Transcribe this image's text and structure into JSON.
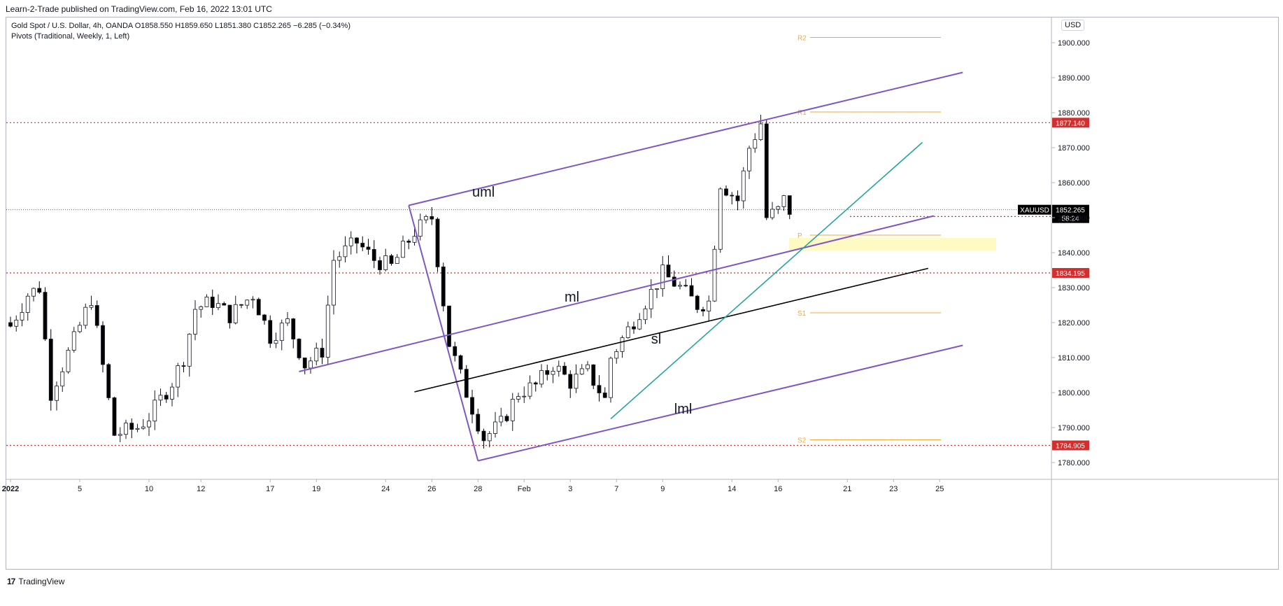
{
  "header": {
    "publisher_line": "Learn-2-Trade published on TradingView.com, Feb 16, 2022 13:01 UTC"
  },
  "legend": {
    "title": "Gold Spot / U.S. Dollar, 4h, OANDA",
    "open": "O1858.550",
    "high": "H1859.650",
    "low": "L1851.380",
    "close": "C1852.265",
    "change": "−6.285 (−0.34%)",
    "indicator": "Pivots (Traditional, Weekly, 1, Left)"
  },
  "currency_badge": "USD",
  "footer": {
    "logo": "17",
    "brand": "TradingView"
  },
  "colors": {
    "bull": "#ffffff",
    "bear": "#000000",
    "pitchfork": "#7e57c2",
    "sliding": "#000000",
    "trend": "#26a69a",
    "pivot": "#f2a93b",
    "level": "#d32f2f",
    "highlight": "#fff59d"
  },
  "chart_data": {
    "type": "candlestick",
    "symbol": "XAUUSD",
    "timeframe": "4h",
    "ylim": [
      1775,
      1905
    ],
    "price_ticks": [
      1780,
      1790,
      1800,
      1810,
      1820,
      1830,
      1840,
      1850,
      1860,
      1870,
      1880,
      1890,
      1900
    ],
    "price_tick_labels": [
      "1780.000",
      "1790.000",
      "1800.000",
      "1810.000",
      "1820.000",
      "1830.000",
      "1840.000",
      "1850.000",
      "1860.000",
      "1870.000",
      "1880.000",
      "1890.000",
      "1900.000"
    ],
    "x_labels": [
      {
        "label": "2022",
        "bar": 0
      },
      {
        "label": "5",
        "bar": 12
      },
      {
        "label": "10",
        "bar": 24
      },
      {
        "label": "12",
        "bar": 33
      },
      {
        "label": "17",
        "bar": 45
      },
      {
        "label": "19",
        "bar": 53
      },
      {
        "label": "24",
        "bar": 65
      },
      {
        "label": "26",
        "bar": 73
      },
      {
        "label": "28",
        "bar": 81
      },
      {
        "label": "Feb",
        "bar": 89
      },
      {
        "label": "3",
        "bar": 97
      },
      {
        "label": "7",
        "bar": 105
      },
      {
        "label": "9",
        "bar": 113
      },
      {
        "label": "14",
        "bar": 125
      },
      {
        "label": "16",
        "bar": 133
      },
      {
        "label": "21",
        "bar": 145
      },
      {
        "label": "23",
        "bar": 153
      },
      {
        "label": "25",
        "bar": 161
      }
    ],
    "ohlc_anchor_points": [
      [
        0,
        1819
      ],
      [
        3,
        1828
      ],
      [
        5,
        1830
      ],
      [
        7,
        1800
      ],
      [
        11,
        1815
      ],
      [
        14,
        1827
      ],
      [
        18,
        1788
      ],
      [
        22,
        1790
      ],
      [
        24,
        1793
      ],
      [
        28,
        1803
      ],
      [
        30,
        1810
      ],
      [
        32,
        1824
      ],
      [
        35,
        1826
      ],
      [
        38,
        1822
      ],
      [
        42,
        1828
      ],
      [
        45,
        1816
      ],
      [
        48,
        1820
      ],
      [
        51,
        1808
      ],
      [
        54,
        1812
      ],
      [
        56,
        1838
      ],
      [
        60,
        1843
      ],
      [
        63,
        1838
      ],
      [
        66,
        1836
      ],
      [
        70,
        1846
      ],
      [
        73,
        1850
      ],
      [
        76,
        1814
      ],
      [
        79,
        1800
      ],
      [
        82,
        1787
      ],
      [
        85,
        1791
      ],
      [
        88,
        1800
      ],
      [
        91,
        1802
      ],
      [
        94,
        1808
      ],
      [
        97,
        1803
      ],
      [
        100,
        1806
      ],
      [
        103,
        1798
      ],
      [
        104,
        1810
      ],
      [
        107,
        1818
      ],
      [
        110,
        1826
      ],
      [
        113,
        1834
      ],
      [
        116,
        1830
      ],
      [
        119,
        1825
      ],
      [
        121,
        1826
      ],
      [
        123,
        1860
      ],
      [
        126,
        1855
      ],
      [
        128,
        1870
      ],
      [
        130,
        1877
      ],
      [
        131,
        1850
      ],
      [
        133,
        1852
      ],
      [
        134,
        1855
      ],
      [
        135,
        1852
      ]
    ],
    "last_price": {
      "label": "XAUUSD",
      "value": "1852.265",
      "countdown": "58:24",
      "price": 1852.265
    },
    "levels": [
      {
        "value": "1877.140",
        "price": 1877.14
      },
      {
        "value": "1850.320",
        "price": 1850.32
      },
      {
        "value": "1834.195",
        "price": 1834.195
      },
      {
        "value": "1784.905",
        "price": 1784.905
      }
    ],
    "pivots": [
      {
        "label": "R2",
        "price": 1901.5
      },
      {
        "label": "R1",
        "price": 1880.2
      },
      {
        "label": "P",
        "price": 1845.0
      },
      {
        "label": "S1",
        "price": 1822.8
      },
      {
        "label": "S2",
        "price": 1786.5
      }
    ],
    "highlight_zone": {
      "from": 1840.5,
      "to": 1844.2
    },
    "annotations": [
      {
        "text": "uml",
        "bar": 80,
        "price": 1856
      },
      {
        "text": "ml",
        "bar": 96,
        "price": 1826
      },
      {
        "text": "sl",
        "bar": 111,
        "price": 1814
      },
      {
        "text": "lml",
        "bar": 115,
        "price": 1794
      }
    ],
    "pitchfork": {
      "origin": [
        69,
        1853.5
      ],
      "upper_end": [
        165,
        1891.5
      ],
      "median_start": [
        50,
        1806.0
      ],
      "median_end": [
        160,
        1850.5
      ],
      "lower_start": [
        81,
        1780.5
      ],
      "lower_end": [
        165,
        1813.5
      ]
    },
    "sliding_line": {
      "from": [
        70,
        1800.2
      ],
      "to": [
        159,
        1835.5
      ]
    },
    "trend_line": {
      "from": [
        104,
        1792.5
      ],
      "to": [
        158,
        1871.5
      ]
    }
  }
}
